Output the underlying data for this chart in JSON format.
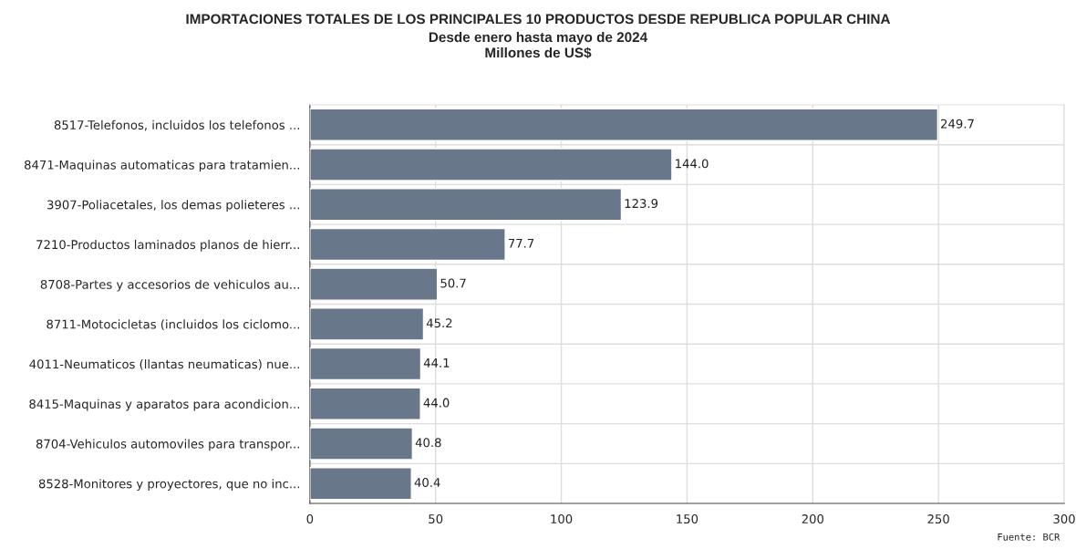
{
  "chart_data": {
    "type": "bar",
    "orientation": "horizontal",
    "title": "IMPORTACIONES TOTALES DE LOS PRINCIPALES 10 PRODUCTOS DESDE REPUBLICA POPULAR CHINA",
    "subtitle": "Desde enero hasta mayo de 2024\nMillones de US$",
    "categories": [
      "8517-Telefonos, incluidos los telefonos ...",
      "8471-Maquinas automaticas para tratamien...",
      "3907-Poliacetales, los demas polieteres ...",
      "7210-Productos laminados planos de hierr...",
      "8708-Partes y accesorios de vehiculos au...",
      "8711-Motocicletas (incluidos los ciclomo...",
      "4011-Neumaticos (llantas neumaticas) nue...",
      "8415-Maquinas y aparatos para acondicion...",
      "8704-Vehiculos automoviles para transpor...",
      "8528-Monitores y proyectores, que no inc..."
    ],
    "values": [
      249.7,
      144.0,
      123.9,
      77.7,
      50.7,
      45.2,
      44.1,
      44.0,
      40.8,
      40.4
    ],
    "value_labels": [
      "249.7",
      "144.0",
      "123.9",
      "77.7",
      "50.7",
      "45.2",
      "44.1",
      "44.0",
      "40.8",
      "40.4"
    ],
    "color": "#68778a",
    "xlim": [
      0,
      300
    ],
    "xticks": [
      0,
      50,
      100,
      150,
      200,
      250,
      300
    ],
    "grid": true,
    "annotations": [
      "Fuente: BCR"
    ]
  }
}
